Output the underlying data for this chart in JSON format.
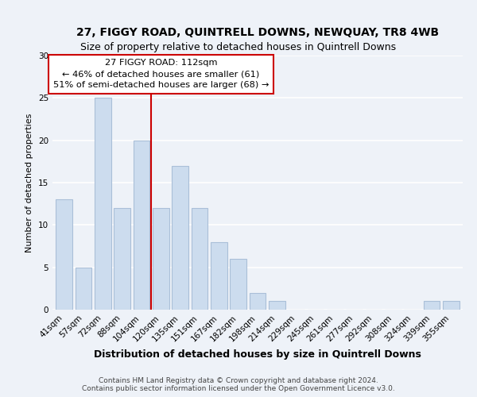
{
  "title1": "27, FIGGY ROAD, QUINTRELL DOWNS, NEWQUAY, TR8 4WB",
  "title2": "Size of property relative to detached houses in Quintrell Downs",
  "xlabel": "Distribution of detached houses by size in Quintrell Downs",
  "ylabel": "Number of detached properties",
  "bar_labels": [
    "41sqm",
    "57sqm",
    "72sqm",
    "88sqm",
    "104sqm",
    "120sqm",
    "135sqm",
    "151sqm",
    "167sqm",
    "182sqm",
    "198sqm",
    "214sqm",
    "229sqm",
    "245sqm",
    "261sqm",
    "277sqm",
    "292sqm",
    "308sqm",
    "324sqm",
    "339sqm",
    "355sqm"
  ],
  "bar_values": [
    13,
    5,
    25,
    12,
    20,
    12,
    17,
    12,
    8,
    6,
    2,
    1,
    0,
    0,
    0,
    0,
    0,
    0,
    0,
    1,
    1
  ],
  "bar_color": "#ccdcee",
  "bar_edge_color": "#aabfd8",
  "vline_index": 4.5,
  "vline_color": "#cc0000",
  "annotation_line1": "27 FIGGY ROAD: 112sqm",
  "annotation_line2": "← 46% of detached houses are smaller (61)",
  "annotation_line3": "51% of semi-detached houses are larger (68) →",
  "annotation_box_color": "#ffffff",
  "annotation_box_edge": "#cc0000",
  "ylim": [
    0,
    30
  ],
  "yticks": [
    0,
    5,
    10,
    15,
    20,
    25,
    30
  ],
  "footer1": "Contains HM Land Registry data © Crown copyright and database right 2024.",
  "footer2": "Contains public sector information licensed under the Open Government Licence v3.0.",
  "background_color": "#eef2f8",
  "grid_color": "#ffffff",
  "title1_fontsize": 10,
  "title2_fontsize": 9,
  "xlabel_fontsize": 9,
  "ylabel_fontsize": 8,
  "tick_fontsize": 7.5,
  "footer_fontsize": 6.5
}
